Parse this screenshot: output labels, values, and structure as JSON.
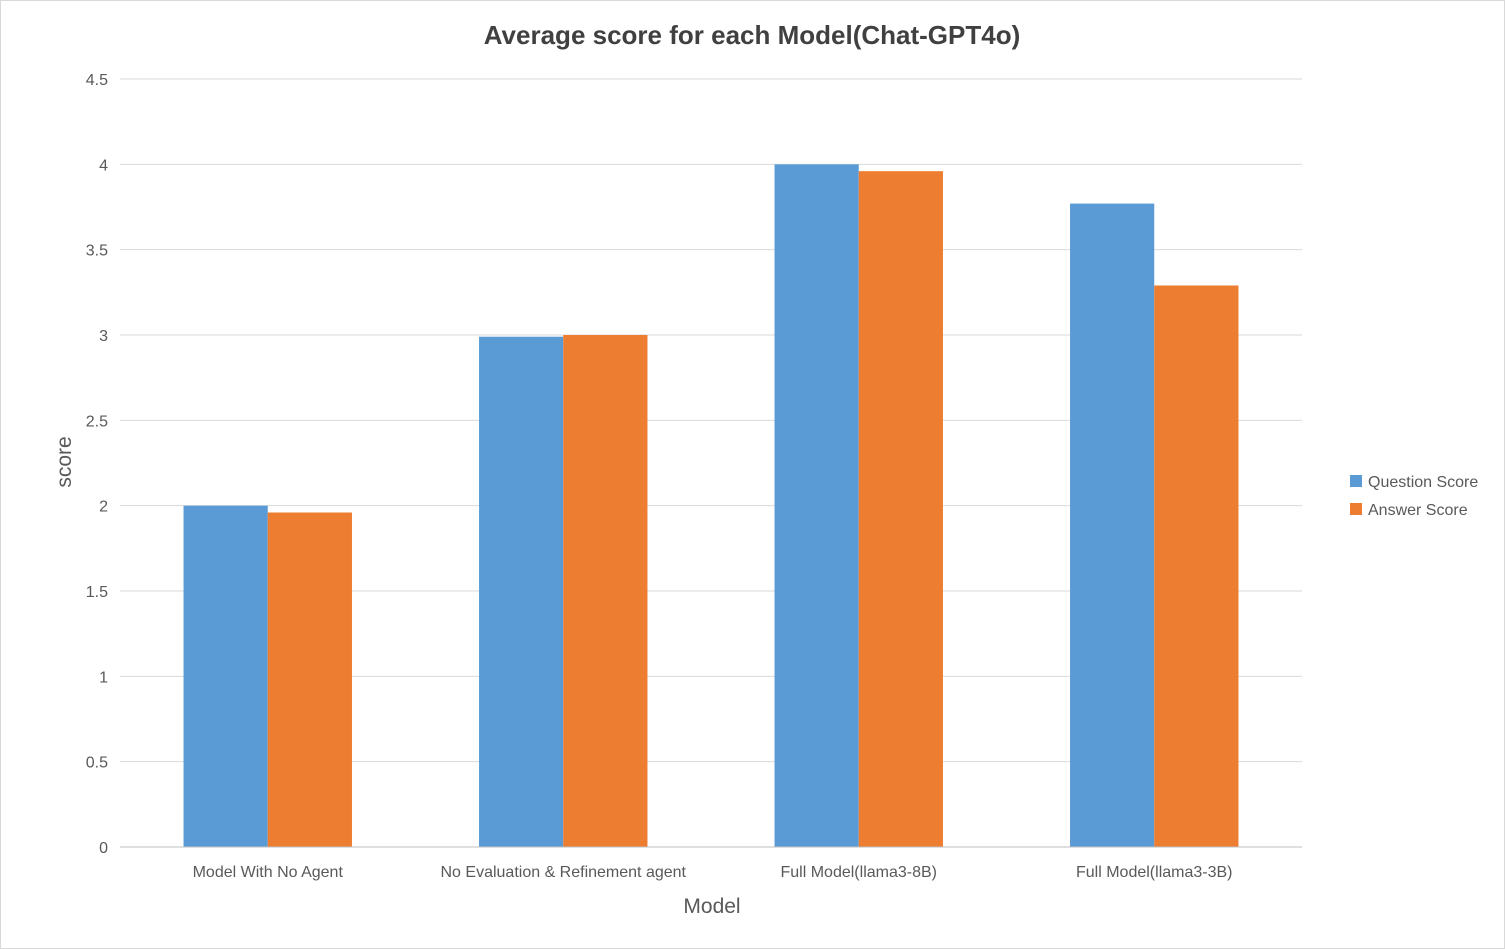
{
  "chart_data": {
    "type": "bar",
    "title": "Average score for each Model(Chat-GPT4o)",
    "xlabel": "Model",
    "ylabel": "score",
    "categories": [
      "Model With No Agent",
      "No Evaluation & Refinement agent",
      "Full Model(llama3-8B)",
      "Full Model(llama3-3B)"
    ],
    "series": [
      {
        "name": "Question Score",
        "color": "#5b9bd5",
        "values": [
          2.0,
          2.99,
          4.0,
          3.77
        ]
      },
      {
        "name": "Answer Score",
        "color": "#ed7d31",
        "values": [
          1.96,
          3.0,
          3.96,
          3.29
        ]
      }
    ],
    "ylim": [
      0,
      4.5
    ],
    "yticks": [
      0,
      0.5,
      1,
      1.5,
      2,
      2.5,
      3,
      3.5,
      4,
      4.5
    ],
    "ytick_labels": [
      "0",
      "0.5",
      "1",
      "1.5",
      "2",
      "2.5",
      "3",
      "3.5",
      "4",
      "4.5"
    ],
    "grid": true,
    "legend_position": "right"
  }
}
